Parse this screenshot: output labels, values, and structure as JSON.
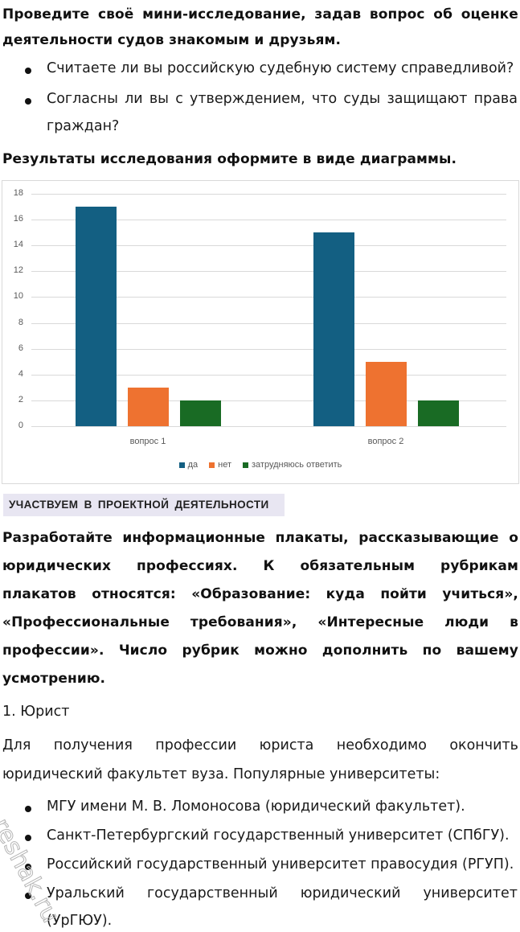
{
  "task1": {
    "title_line1": [
      "Проведите",
      "своё",
      "мини-исследование,",
      "задав",
      "вопрос",
      "об",
      "оценке"
    ],
    "title_line2": "деятельности судов знакомым и друзьям.",
    "questions": [
      "Считаете ли вы российскую судебную систему справедливой?",
      [
        "Согласны",
        "ли",
        "вы",
        "с",
        "утверждением,",
        "что",
        "суды",
        "защищают",
        "права"
      ],
      "граждан?"
    ],
    "result_instruction": "Результаты исследования оформите в виде диаграммы."
  },
  "chart_data": {
    "type": "bar",
    "title": "",
    "xlabel": "",
    "ylabel": "",
    "categories": [
      "вопрос 1",
      "вопрос 2"
    ],
    "series": [
      {
        "name": "да",
        "color": "#135f82",
        "values": [
          17,
          15
        ]
      },
      {
        "name": "нет",
        "color": "#ee7230",
        "values": [
          3,
          5
        ]
      },
      {
        "name": "затрудняюсь ответить",
        "color": "#196b24",
        "values": [
          2,
          2
        ]
      }
    ],
    "ylim": [
      0,
      18
    ],
    "yticks": [
      "18",
      "16",
      "14",
      "12",
      "10",
      "8",
      "6",
      "4",
      "2",
      "0"
    ],
    "grid": true,
    "legend_position": "bottom"
  },
  "section_banner": "УЧАСТВУЕМ В ПРОЕКТНОЙ ДЕЯТЕЛЬНОСТИ",
  "task2": {
    "lines": [
      [
        "Разработайте",
        "информационные",
        "плакаты,",
        "рассказывающие",
        "о"
      ],
      [
        "юридических",
        "профессиях.",
        "К",
        "обязательным",
        "рубрикам"
      ],
      [
        "плакатов",
        "относятся:",
        "«Образование:",
        "куда",
        "пойти",
        "учиться»,"
      ],
      [
        "«Профессиональные",
        "требования»,",
        "«Интересные",
        "люди",
        "в"
      ],
      [
        "профессии».",
        "Число",
        "рубрик",
        "можно",
        "дополнить",
        "по",
        "вашему"
      ],
      "усмотрению."
    ]
  },
  "answer": {
    "heading": "1. Юрист",
    "para_line1": [
      "Для",
      "получения",
      "профессии",
      "юриста",
      "необходимо",
      "окончить"
    ],
    "para_line2": "юридический факультет вуза. Популярные университеты:",
    "universities": [
      "МГУ имени М. В. Ломоносова (юридический факультет).",
      "Санкт-Петербургский государственный университет (СПбГУ).",
      "Российский государственный университет правосудия (РГУП).",
      [
        "Уральский",
        "государственный",
        "юридический",
        "университет"
      ],
      "(УрГЮУ)."
    ]
  },
  "watermark": "reshak.ru"
}
